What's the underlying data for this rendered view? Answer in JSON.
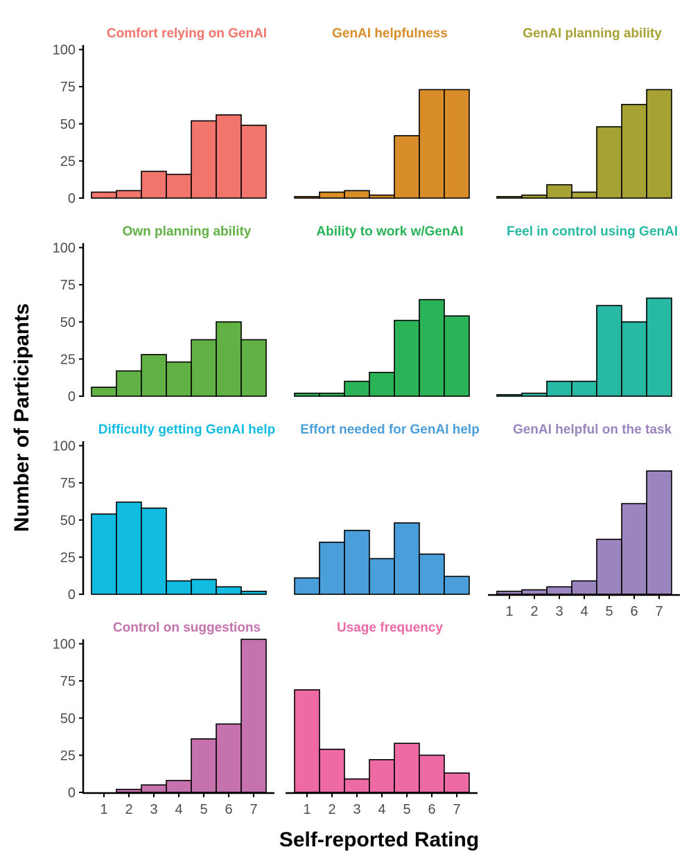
{
  "chart_data": {
    "type": "bar",
    "layout": "facet-grid",
    "xlabel": "Self-reported Rating",
    "ylabel": "Number of Participants",
    "categories": [
      "1",
      "2",
      "3",
      "4",
      "5",
      "6",
      "7"
    ],
    "ylim": [
      0,
      103
    ],
    "yticks": [
      "0",
      "25",
      "50",
      "75",
      "100"
    ],
    "panels": [
      {
        "title": "Comfort relying on GenAI",
        "color": "#F2756D",
        "values": [
          4,
          5,
          18,
          16,
          52,
          56,
          49
        ]
      },
      {
        "title": "GenAI helpfulness",
        "color": "#D88D29",
        "values": [
          1,
          4,
          5,
          2,
          42,
          73,
          73
        ]
      },
      {
        "title": "GenAI planning ability",
        "color": "#A6A234",
        "values": [
          1,
          2,
          9,
          4,
          48,
          63,
          73
        ]
      },
      {
        "title": "Own planning ability",
        "color": "#62B145",
        "values": [
          6,
          17,
          28,
          23,
          38,
          50,
          38
        ]
      },
      {
        "title": "Ability to work w/GenAI",
        "color": "#2BB357",
        "values": [
          2,
          2,
          10,
          16,
          51,
          65,
          54
        ]
      },
      {
        "title": "Feel in control using GenAI",
        "color": "#27B9A3",
        "values": [
          1,
          2,
          10,
          10,
          61,
          50,
          66
        ]
      },
      {
        "title": "Difficulty getting GenAI help",
        "color": "#12BCE1",
        "values": [
          54,
          62,
          58,
          9,
          10,
          5,
          2
        ]
      },
      {
        "title": "Effort needed for GenAI help",
        "color": "#4A9FDA",
        "values": [
          11,
          35,
          43,
          24,
          48,
          27,
          12
        ]
      },
      {
        "title": "GenAI helpful on the task",
        "color": "#9B85BF",
        "values": [
          2,
          3,
          5,
          9,
          37,
          61,
          83
        ]
      },
      {
        "title": "Control on suggestions",
        "color": "#C672AE",
        "values": [
          0,
          2,
          5,
          8,
          36,
          46,
          103
        ]
      },
      {
        "title": "Usage frequency",
        "color": "#ED6AA5",
        "values": [
          69,
          29,
          9,
          22,
          33,
          25,
          13
        ]
      }
    ]
  }
}
